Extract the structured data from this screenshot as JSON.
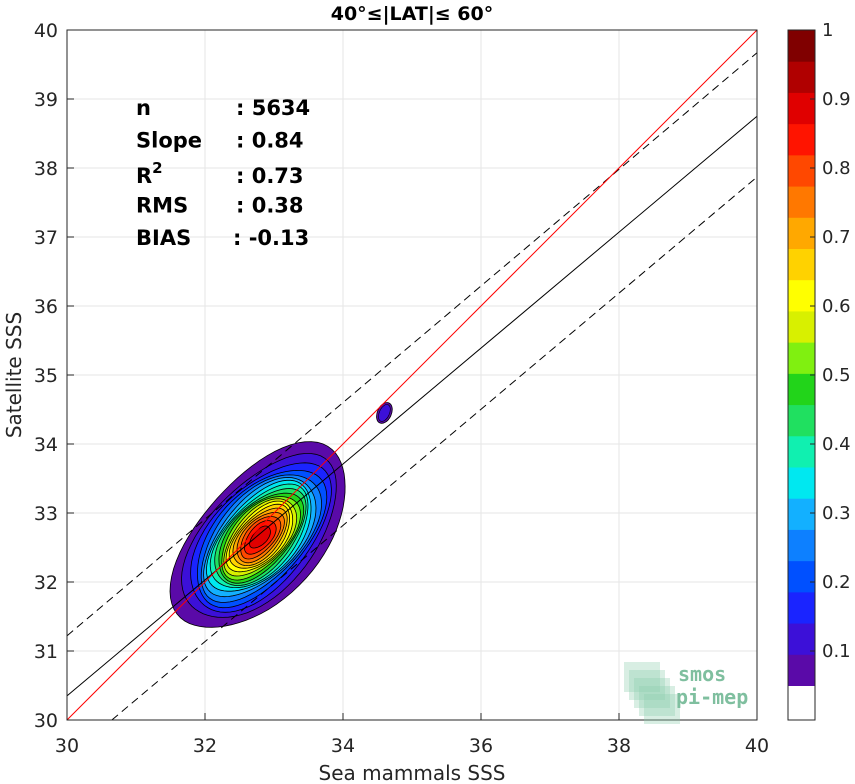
{
  "chart_data": {
    "type": "scatter",
    "title": "40°≤|LAT|≤ 60°",
    "xlabel": "Sea mammals SSS",
    "ylabel": "Satellite SSS",
    "xlim": [
      30,
      40
    ],
    "ylim": [
      30,
      40
    ],
    "xticks": [
      "30",
      "32",
      "34",
      "36",
      "38",
      "40"
    ],
    "yticks": [
      "30",
      "31",
      "32",
      "33",
      "34",
      "35",
      "36",
      "37",
      "38",
      "39",
      "40"
    ],
    "grid": true,
    "stats": [
      {
        "label": "n",
        "sep": ": ",
        "value": "5634"
      },
      {
        "label": "Slope",
        "sep": ": ",
        "value": "0.84"
      },
      {
        "label": "R",
        "sup": "2",
        "sep": ": ",
        "value": "0.73"
      },
      {
        "label": "RMS",
        "sep": ": ",
        "value": "0.38"
      },
      {
        "label": "BIAS",
        "sep": ": ",
        "value": "-0.13"
      }
    ],
    "lines": {
      "identity": {
        "x": [
          30,
          40
        ],
        "y": [
          30,
          40
        ],
        "color": "#ff0000"
      },
      "fit": {
        "x": [
          30,
          40
        ],
        "y": [
          30.35,
          38.75
        ],
        "color": "#000000"
      },
      "fit_upper": {
        "x": [
          30,
          40
        ],
        "y": [
          31.22,
          39.67
        ],
        "color": "#000000",
        "dash": true
      },
      "fit_lower": {
        "x": [
          30.65,
          40
        ],
        "y": [
          30,
          37.87
        ],
        "color": "#000000",
        "dash": true
      }
    },
    "density": {
      "center": [
        32.8,
        32.65
      ],
      "angle_deg": 48,
      "sigma": [
        0.68,
        0.36
      ],
      "scale": 0.9,
      "secondary_blob": {
        "center": [
          34.6,
          34.45
        ]
      }
    },
    "colorbar": {
      "ticks": [
        "0.1",
        "0.2",
        "0.3",
        "0.4",
        "0.5",
        "0.6",
        "0.7",
        "0.8",
        "0.9",
        "1"
      ],
      "min": 0.05,
      "max": 1.0,
      "colors": [
        "#5a0aa8",
        "#3c10d8",
        "#1a24ff",
        "#0050ff",
        "#0d80ff",
        "#13b0ff",
        "#00e8f0",
        "#10f0b0",
        "#20e060",
        "#22d41a",
        "#80f010",
        "#d8f000",
        "#ffff00",
        "#ffd200",
        "#ffa800",
        "#ff7800",
        "#ff4800",
        "#ff1400",
        "#e00000",
        "#b00000",
        "#800000"
      ]
    },
    "logo": {
      "line1": "smos",
      "line2": "pi-mep"
    }
  }
}
